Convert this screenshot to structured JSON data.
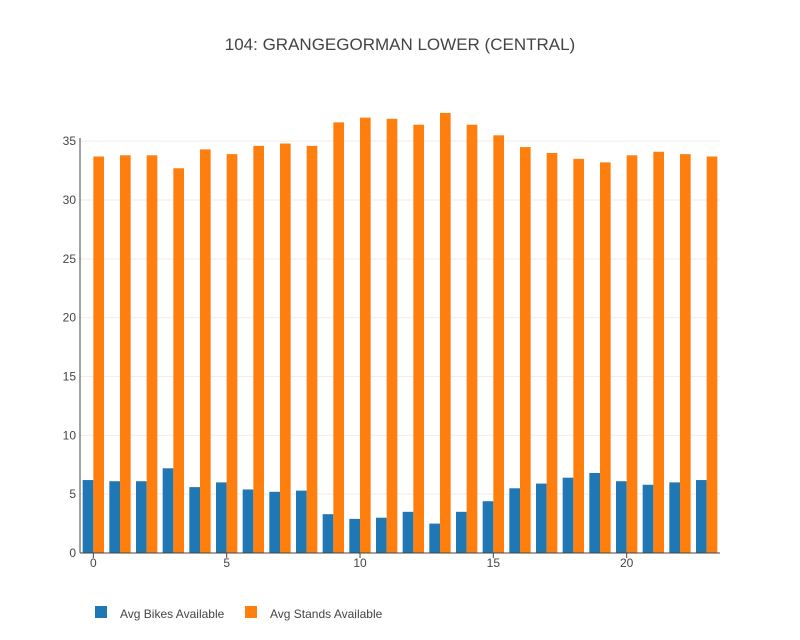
{
  "chart_data": {
    "type": "bar",
    "title": "104: GRANGEGORMAN LOWER (CENTRAL)",
    "xlabel": "",
    "ylabel": "",
    "x": [
      0,
      1,
      2,
      3,
      4,
      5,
      6,
      7,
      8,
      9,
      10,
      11,
      12,
      13,
      14,
      15,
      16,
      17,
      18,
      19,
      20,
      21,
      22,
      23
    ],
    "x_ticks": [
      0,
      5,
      10,
      15,
      20
    ],
    "y_ticks": [
      0,
      5,
      10,
      15,
      20,
      25,
      30,
      35
    ],
    "ylim": [
      0,
      38.5
    ],
    "xlim": [
      -0.5,
      23.5
    ],
    "grid": true,
    "legend_position": "bottom-left",
    "series": [
      {
        "name": "Avg Bikes Available",
        "color": "#1f77b4",
        "values": [
          6.2,
          6.1,
          6.1,
          7.2,
          5.6,
          6.0,
          5.4,
          5.2,
          5.3,
          3.3,
          2.9,
          3.0,
          3.5,
          2.5,
          3.5,
          4.4,
          5.5,
          5.9,
          6.4,
          6.8,
          6.1,
          5.8,
          6.0,
          6.2
        ]
      },
      {
        "name": "Avg Stands Available",
        "color": "#ff7f0e",
        "values": [
          33.7,
          33.8,
          33.8,
          32.7,
          34.3,
          33.9,
          34.6,
          34.8,
          34.6,
          36.6,
          37.0,
          36.9,
          36.4,
          37.4,
          36.4,
          35.5,
          34.5,
          34.0,
          33.5,
          33.2,
          33.8,
          34.1,
          33.9,
          33.7
        ]
      }
    ]
  }
}
